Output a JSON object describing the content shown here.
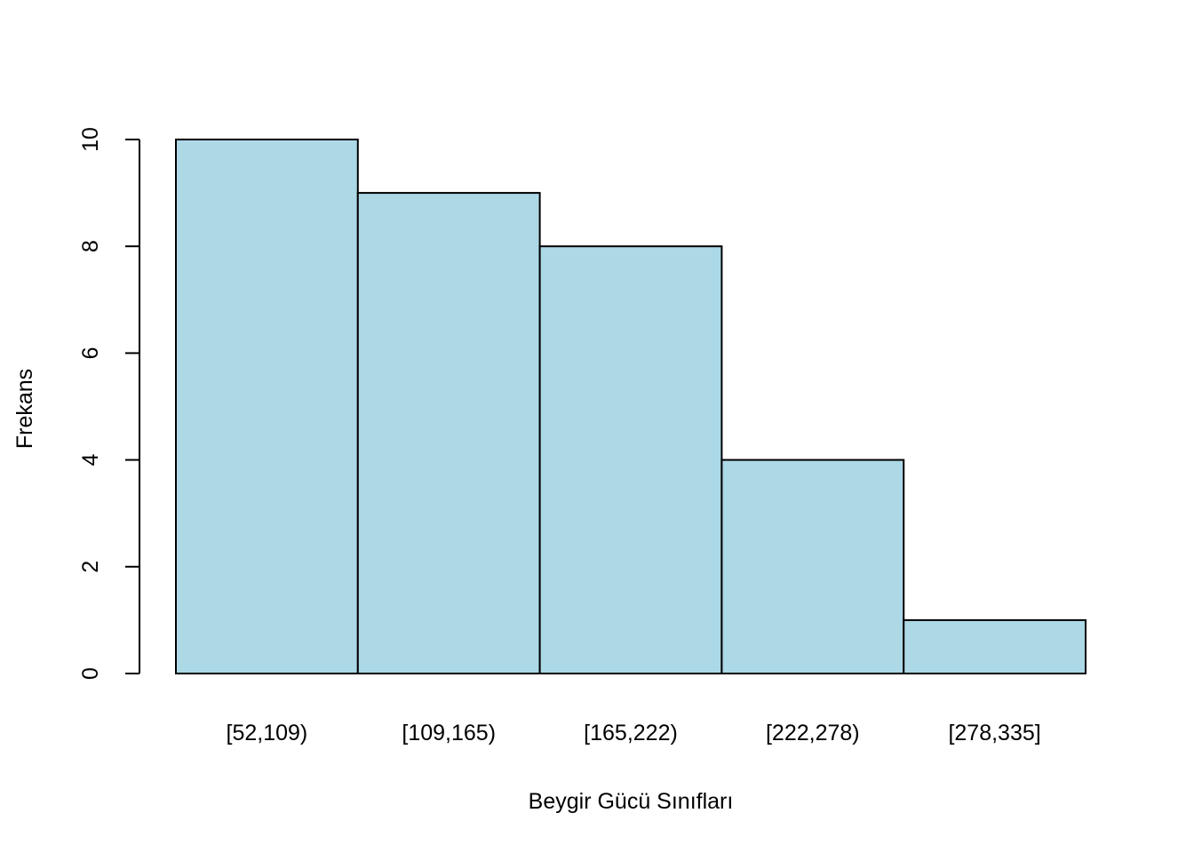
{
  "chart_data": {
    "type": "bar",
    "title": "",
    "xlabel": "Beygir Gücü Sınıfları",
    "ylabel": "Frekans",
    "categories": [
      "[52,109)",
      "[109,165)",
      "[165,222)",
      "[222,278)",
      "[278,335]"
    ],
    "values": [
      10,
      9,
      8,
      4,
      1
    ],
    "ylim": [
      0,
      10
    ],
    "yticks": [
      0,
      2,
      4,
      6,
      8,
      10
    ],
    "grid": false,
    "legend": "none",
    "colors": {
      "bar_fill": "#add8e6",
      "bar_stroke": "#000000",
      "axis": "#000000"
    }
  }
}
